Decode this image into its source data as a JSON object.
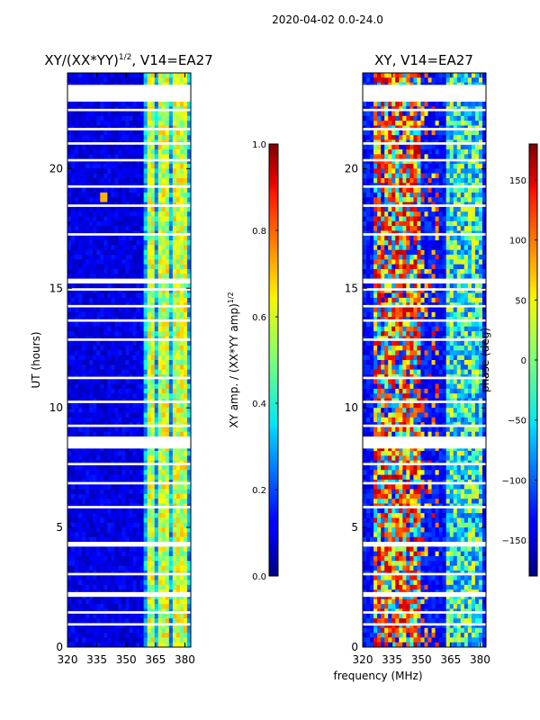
{
  "figure_title": "2020-04-02 0.0-24.0",
  "chart_data": [
    {
      "type": "heatmap",
      "title": "XY/(XX*YY)",
      "title_exponent": "1/2",
      "title_suffix": ", V14=EA27",
      "xlabel": "",
      "ylabel": "UT (hours)",
      "xlim": [
        320,
        383
      ],
      "ylim": [
        0,
        24
      ],
      "xticks": [
        320,
        335,
        350,
        365,
        380
      ],
      "yticks": [
        0,
        5,
        10,
        15,
        20
      ],
      "colormap": "jet",
      "colorbar": {
        "label": "XY amp. / (XX*YY amp)",
        "label_exponent": "1/2",
        "range": [
          0.0,
          1.0
        ],
        "ticks": [
          "0.0",
          "0.2",
          "0.4",
          "0.6",
          "0.8",
          "1.0"
        ]
      },
      "flagged_hours": [
        [
          22.8,
          23.5
        ],
        [
          22.4,
          22.5
        ],
        [
          21.6,
          21.7
        ],
        [
          21.0,
          21.1
        ],
        [
          20.3,
          20.4
        ],
        [
          19.2,
          19.3
        ],
        [
          18.4,
          18.5
        ],
        [
          17.2,
          17.3
        ],
        [
          15.2,
          15.4
        ],
        [
          14.9,
          15.0
        ],
        [
          14.2,
          14.3
        ],
        [
          13.6,
          13.7
        ],
        [
          12.8,
          12.9
        ],
        [
          11.2,
          11.3
        ],
        [
          10.2,
          10.3
        ],
        [
          9.2,
          9.3
        ],
        [
          8.3,
          8.8
        ],
        [
          7.6,
          7.7
        ],
        [
          6.8,
          6.9
        ],
        [
          5.8,
          5.9
        ],
        [
          4.2,
          4.4
        ],
        [
          3.0,
          3.1
        ],
        [
          2.1,
          2.3
        ],
        [
          1.4,
          1.5
        ],
        [
          0.9,
          1.0
        ]
      ]
    },
    {
      "type": "heatmap",
      "title": "XY, V14=EA27",
      "xlabel": "frequency (MHz)",
      "ylabel": "",
      "xlim": [
        320,
        383
      ],
      "ylim": [
        0,
        24
      ],
      "xticks": [
        320,
        335,
        350,
        365,
        380
      ],
      "yticks": [
        0,
        5,
        10,
        15,
        20
      ],
      "colormap": "jet",
      "colorbar": {
        "label": "phase (deg)",
        "range": [
          -180,
          180
        ],
        "ticks": [
          "−150",
          "−100",
          "−50",
          "0",
          "50",
          "100",
          "150"
        ],
        "tick_values": [
          -150,
          -100,
          -50,
          0,
          50,
          100,
          150
        ]
      },
      "flagged_hours": [
        [
          22.8,
          23.5
        ],
        [
          22.4,
          22.5
        ],
        [
          21.6,
          21.7
        ],
        [
          21.0,
          21.1
        ],
        [
          20.3,
          20.4
        ],
        [
          19.2,
          19.3
        ],
        [
          18.4,
          18.5
        ],
        [
          17.2,
          17.3
        ],
        [
          15.2,
          15.4
        ],
        [
          14.9,
          15.0
        ],
        [
          14.2,
          14.3
        ],
        [
          13.6,
          13.7
        ],
        [
          12.8,
          12.9
        ],
        [
          11.2,
          11.3
        ],
        [
          10.2,
          10.3
        ],
        [
          9.2,
          9.3
        ],
        [
          8.3,
          8.8
        ],
        [
          7.6,
          7.7
        ],
        [
          6.8,
          6.9
        ],
        [
          5.8,
          5.9
        ],
        [
          4.2,
          4.4
        ],
        [
          3.0,
          3.1
        ],
        [
          2.1,
          2.3
        ],
        [
          1.4,
          1.5
        ],
        [
          0.9,
          1.0
        ]
      ]
    }
  ]
}
